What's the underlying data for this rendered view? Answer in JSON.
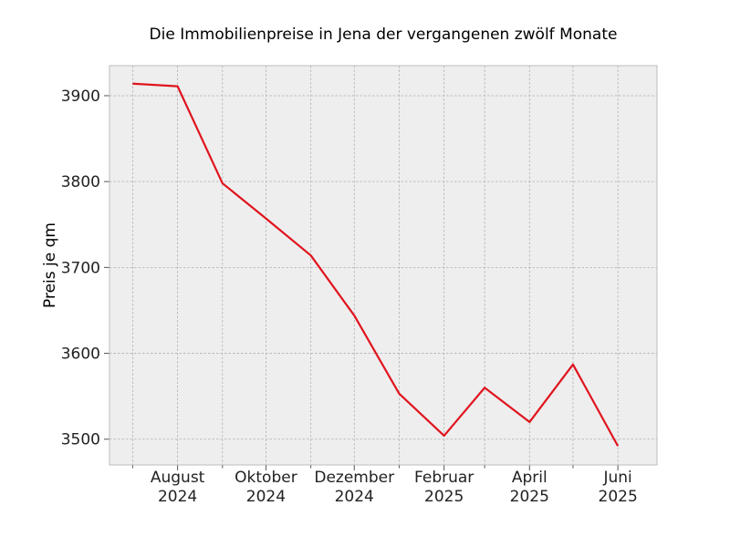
{
  "chart_data": {
    "type": "line",
    "title": "Die Immobilienpreise in Jena der vergangenen zwölf Monate",
    "xlabel": "",
    "ylabel": "Preis je qm",
    "x": [
      "2024-07",
      "2024-08",
      "2024-09",
      "2024-10",
      "2024-11",
      "2024-12",
      "2025-01",
      "2025-02",
      "2025-03",
      "2025-04",
      "2025-05",
      "2025-06"
    ],
    "series": [
      {
        "values": [
          3914,
          3911,
          3798,
          3757,
          3714,
          3644,
          3553,
          3504,
          3560,
          3520,
          3587,
          3492
        ]
      }
    ],
    "xticks": [
      {
        "x": "2024-08",
        "line1": "August",
        "line2": "2024"
      },
      {
        "x": "2024-10",
        "line1": "Oktober",
        "line2": "2024"
      },
      {
        "x": "2024-12",
        "line1": "Dezember",
        "line2": "2024"
      },
      {
        "x": "2025-02",
        "line1": "Februar",
        "line2": "2025"
      },
      {
        "x": "2025-04",
        "line1": "April",
        "line2": "2025"
      },
      {
        "x": "2025-06",
        "line1": "Juni",
        "line2": "2025"
      }
    ],
    "minor_xticks": [
      "2024-07",
      "2024-09",
      "2024-11",
      "2025-01",
      "2025-03",
      "2025-05"
    ],
    "yticks": [
      3500,
      3600,
      3700,
      3800,
      3900
    ],
    "ylim": [
      3470,
      3935
    ],
    "xlim": [
      "2024-06-15",
      "2025-06-28"
    ],
    "grid": true,
    "colors": {
      "line": "#e0141e",
      "plot_background": "#eeeeee",
      "grid": "#b0b0b0",
      "frame": "#bcbcbc"
    }
  }
}
